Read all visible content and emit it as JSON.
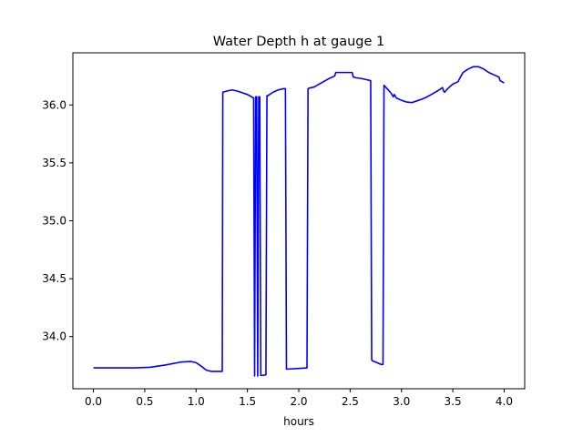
{
  "chart_data": {
    "type": "line",
    "title": "Water Depth h at gauge 1",
    "xlabel": "hours",
    "ylabel": "",
    "xlim": [
      -0.2,
      4.2
    ],
    "ylim": [
      33.55,
      36.45
    ],
    "xticks": [
      0.0,
      0.5,
      1.0,
      1.5,
      2.0,
      2.5,
      3.0,
      3.5,
      4.0
    ],
    "xtick_labels": [
      "0.0",
      "0.5",
      "1.0",
      "1.5",
      "2.0",
      "2.5",
      "3.0",
      "3.5",
      "4.0"
    ],
    "yticks": [
      34.0,
      34.5,
      35.0,
      35.5,
      36.0
    ],
    "ytick_labels": [
      "34.0",
      "34.5",
      "35.0",
      "35.5",
      "36.0"
    ],
    "grid": false,
    "legend": "none",
    "series": [
      {
        "color": "#0000ff",
        "x": [
          0.0,
          0.2,
          0.4,
          0.55,
          0.7,
          0.85,
          0.95,
          1.0,
          1.05,
          1.1,
          1.15,
          1.2,
          1.255,
          1.26,
          1.3,
          1.35,
          1.4,
          1.45,
          1.5,
          1.56,
          1.57,
          1.58,
          1.59,
          1.6,
          1.61,
          1.62,
          1.63,
          1.64,
          1.68,
          1.69,
          1.7,
          1.75,
          1.8,
          1.85,
          1.87,
          1.88,
          1.9,
          2.0,
          2.08,
          2.09,
          2.1,
          2.15,
          2.2,
          2.3,
          2.35,
          2.36,
          2.4,
          2.45,
          2.52,
          2.53,
          2.54,
          2.55,
          2.6,
          2.65,
          2.7,
          2.71,
          2.72,
          2.75,
          2.8,
          2.82,
          2.83,
          2.86,
          2.9,
          2.92,
          2.93,
          2.95,
          3.0,
          3.05,
          3.1,
          3.15,
          3.2,
          3.25,
          3.3,
          3.35,
          3.4,
          3.41,
          3.42,
          3.45,
          3.5,
          3.55,
          3.58,
          3.6,
          3.65,
          3.7,
          3.75,
          3.8,
          3.85,
          3.9,
          3.95,
          3.96,
          4.0
        ],
        "y": [
          33.73,
          33.73,
          33.73,
          33.735,
          33.755,
          33.78,
          33.785,
          33.775,
          33.745,
          33.71,
          33.7,
          33.7,
          33.7,
          36.11,
          36.12,
          36.13,
          36.12,
          36.105,
          36.09,
          36.06,
          33.66,
          36.07,
          36.07,
          33.66,
          36.07,
          36.07,
          33.665,
          33.665,
          33.67,
          36.08,
          36.08,
          36.11,
          36.13,
          36.14,
          36.14,
          33.72,
          33.72,
          33.725,
          33.73,
          36.14,
          36.145,
          36.155,
          36.18,
          36.23,
          36.25,
          36.28,
          36.28,
          36.28,
          36.28,
          36.24,
          36.24,
          36.235,
          36.23,
          36.22,
          36.21,
          33.8,
          33.79,
          33.78,
          33.76,
          33.76,
          36.17,
          36.14,
          36.1,
          36.07,
          36.09,
          36.06,
          36.04,
          36.025,
          36.02,
          36.035,
          36.05,
          36.07,
          36.095,
          36.12,
          36.15,
          36.12,
          36.11,
          36.14,
          36.18,
          36.2,
          36.25,
          36.28,
          36.31,
          36.33,
          36.33,
          36.31,
          36.28,
          36.26,
          36.24,
          36.21,
          36.19
        ]
      }
    ]
  }
}
